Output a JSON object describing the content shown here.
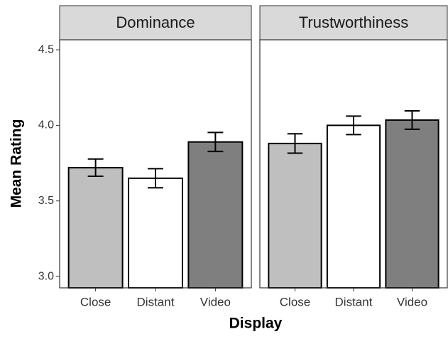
{
  "chart_data": {
    "type": "bar",
    "x_label": "Display",
    "y_label": "Mean Rating",
    "categories": [
      "Close",
      "Distant",
      "Video"
    ],
    "colors": [
      "#bfbfbf",
      "#ffffff",
      "#7f7f7f"
    ],
    "ylim": [
      2.925,
      4.566
    ],
    "yticks": [
      {
        "value": 3,
        "label": "3.0"
      },
      3.5,
      {
        "value": 4,
        "label": "4.0"
      },
      4.5
    ],
    "facets": [
      {
        "title": "Dominance",
        "values": [
          3.72,
          3.65,
          3.89
        ],
        "errors": [
          0.057,
          0.063,
          0.063
        ]
      },
      {
        "title": "Trustworthiness",
        "values": [
          3.88,
          4.0,
          4.035
        ],
        "errors": [
          0.064,
          0.061,
          0.061
        ]
      }
    ]
  }
}
